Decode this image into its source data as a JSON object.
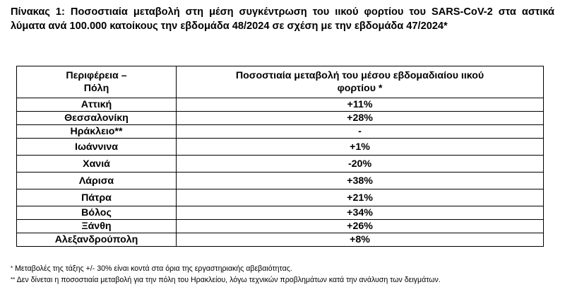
{
  "caption": "Πίνακας 1: Ποσοστιαία μεταβολή στη μέση συγκέντρωση του ιικού φορτίου του SARS-CoV-2 στα αστικά λύματα ανά 100.000 κατοίκους την εβδομάδα 48/2024 σε σχέση με την εβδομάδα 47/2024*",
  "table": {
    "header": {
      "region_line1": "Περιφέρεια –",
      "region_line2": "Πόλη",
      "change_line1": "Ποσοστιαία μεταβολή του μέσου εβδομαδιαίου ιικού",
      "change_line2": "φορτίου *"
    },
    "rows": [
      {
        "city": "Αττική",
        "change": "+11%"
      },
      {
        "city": "Θεσσαλονίκη",
        "change": "+28%"
      },
      {
        "city": "Ηράκλειο**",
        "change": "-"
      },
      {
        "city": "Ιωάννινα",
        "change": "+1%"
      },
      {
        "city": "Χανιά",
        "change": "-20%"
      },
      {
        "city": "Λάρισα",
        "change": "+38%"
      },
      {
        "city": "Πάτρα",
        "change": "+21%"
      },
      {
        "city": "Βόλος",
        "change": "+34%"
      },
      {
        "city": "Ξάνθη",
        "change": "+26%"
      },
      {
        "city": "Αλεξανδρούπολη",
        "change": "+8%"
      }
    ]
  },
  "notes": [
    {
      "marker": "*",
      "text": " Μεταβολές της τάξης +/- 30% είναι κοντά στα όρια της εργαστηριακής αβεβαιότητας."
    },
    {
      "marker": "**",
      "text": " Δεν δίνεται η ποσοστιαία μεταβολή για την πόλη του Ηρακλείου, λόγω τεχνικών προβλημάτων κατά την ανάλυση των δειγμάτων."
    }
  ]
}
